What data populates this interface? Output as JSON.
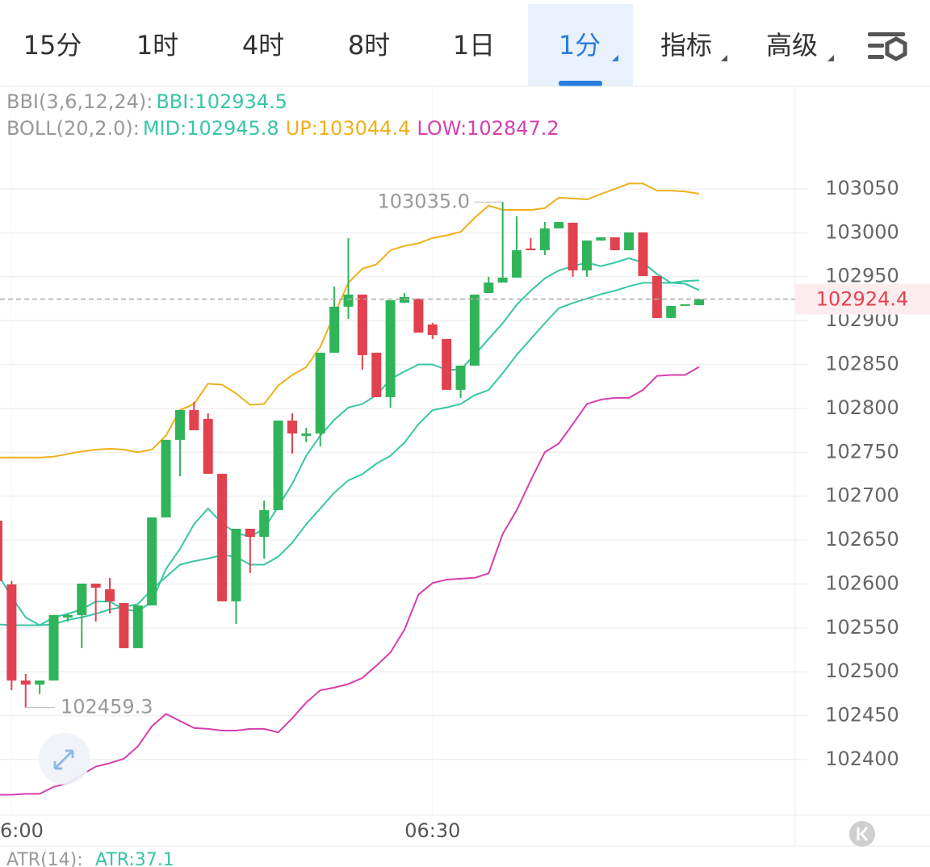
{
  "tabs": [
    "15分",
    "1时",
    "4时",
    "8时",
    "1日",
    "1分",
    "指标",
    "高级"
  ],
  "indicators": {
    "bbi_label": "BBI(3,6,12,24):",
    "boll_label": "BOLL(20,2.0):",
    "atr_label": "ATR(14):",
    "atr_value": "ATR:37.1"
  },
  "chart_data": {
    "type": "candlestick",
    "categories": [
      null,
      "6:00",
      null,
      null,
      null,
      null,
      null,
      null,
      null,
      null,
      null,
      null,
      null,
      null,
      null,
      null,
      null,
      null,
      null,
      null,
      null,
      null,
      null,
      null,
      null,
      null,
      null,
      null,
      null,
      null,
      null,
      "06:30",
      null,
      null,
      null,
      null,
      null,
      null,
      null,
      null,
      null,
      null,
      null,
      null,
      null,
      null,
      null,
      null,
      null,
      null,
      null
    ],
    "open": [
      102672.1,
      102599.5,
      102490.1,
      102485.5,
      102490.1,
      102561.8,
      102564.6,
      102600.4,
      102594.0,
      102578.3,
      102526.9,
      102575.6,
      102675.8,
      102764.1,
      102798.1,
      102788.0,
      102725.5,
      102580.2,
      102662.9,
      102653.7,
      102684.1,
      102786.1,
      102768.7,
      102771.4,
      102863.4,
      102915.8,
      102929.6,
      102863.4,
      102812.8,
      102920.4,
      102925.0,
      102895.5,
      102879.0,
      102821.1,
      102848.7,
      102931.4,
      102943.3,
      102948.9,
      102982.0,
      102980.1,
      103005.0,
      103011.4,
      102957.1,
      102991.2,
      102994.8,
      102980.1,
      103000.4,
      102950.7,
      102902.9,
      102917.6,
      102917.6
    ],
    "high": [
      102672.1,
      102603.2,
      102497.5,
      102490.1,
      102564.6,
      102566.4,
      102600.4,
      102600.4,
      102606.9,
      102578.3,
      102575.6,
      102675.8,
      102764.1,
      102798.1,
      102807.3,
      102794.4,
      102725.5,
      102662.9,
      102662.9,
      102695.1,
      102786.1,
      102794.4,
      102777.9,
      102863.4,
      102938.8,
      102993.9,
      102929.6,
      102863.4,
      102923.1,
      102931.4,
      102925.0,
      102897.4,
      102879.0,
      102848.7,
      102929.6,
      102949.8,
      103035.0,
      103018.7,
      102993.9,
      103012.3,
      103012.3,
      103011.4,
      102991.2,
      102994.8,
      102994.8,
      103000.4,
      103000.4,
      102950.7,
      102916.7,
      102918.5,
      102925.0
    ],
    "low": [
      102603.2,
      102479.1,
      102459.3,
      102474.5,
      102490.1,
      102557.2,
      102526.9,
      102557.2,
      102566.4,
      102526.9,
      102526.9,
      102575.6,
      102675.8,
      102722.7,
      102775.1,
      102725.5,
      102580.2,
      102554.4,
      102612.4,
      102628.9,
      102684.1,
      102748.4,
      102761.3,
      102756.7,
      102863.4,
      102902.0,
      102844.1,
      102812.8,
      102800.8,
      102920.4,
      102886.3,
      102879.0,
      102821.1,
      102811.9,
      102848.7,
      102931.4,
      102943.3,
      102948.9,
      102980.1,
      102974.6,
      103005.0,
      102949.8,
      102949.8,
      102991.2,
      102980.1,
      102980.1,
      102950.7,
      102902.9,
      102902.9,
      102917.6,
      102917.6
    ],
    "close": [
      102603.2,
      102490.1,
      102485.5,
      102490.1,
      102564.6,
      102564.6,
      102600.4,
      102595.8,
      102580.2,
      102526.9,
      102575.6,
      102675.8,
      102764.1,
      102798.1,
      102775.1,
      102725.5,
      102580.2,
      102662.9,
      102653.7,
      102684.1,
      102786.1,
      102771.4,
      102771.4,
      102863.4,
      102915.8,
      102929.6,
      102860.6,
      102812.8,
      102923.1,
      102926.8,
      102886.3,
      102883.6,
      102821.1,
      102848.7,
      102929.6,
      102943.3,
      102948.9,
      102980.1,
      102980.1,
      103005.0,
      103012.3,
      102957.1,
      102991.2,
      102994.8,
      102980.1,
      103000.4,
      102950.7,
      102902.9,
      102916.7,
      102918.5,
      102924.4
    ],
    "up_color": "#2fb45a",
    "down_color": "#e2414f",
    "series": [
      {
        "name": "BBI:102934.5",
        "color": "#37c6a6",
        "values": [
          102612,
          102585,
          102562,
          102553,
          102562,
          102566,
          102571,
          102580,
          102580,
          102571,
          102569,
          102580,
          102617,
          102640,
          102668,
          102686,
          102669,
          102658,
          102654,
          102663,
          102688,
          102714,
          102746,
          102769,
          102787,
          102801,
          102805,
          102815,
          102833,
          102842,
          102850,
          102850,
          102844,
          102844,
          102861,
          102879,
          102897,
          102918,
          102934,
          102948,
          102957,
          102962,
          102966,
          102962,
          102966,
          102971,
          102966,
          102953,
          102943,
          102942,
          102934.5
        ]
      },
      {
        "name": "MID:102945.8",
        "color": "#37c6a6",
        "values": [
          102554,
          102553,
          102553,
          102553,
          102554,
          102559,
          102562,
          102566,
          102571,
          102574,
          102577,
          102594,
          102608,
          102622,
          102626,
          102629,
          102633,
          102631,
          102622,
          102622,
          102631,
          102647,
          102668,
          102686,
          102704,
          102718,
          102725,
          102737,
          102746,
          102761,
          102782,
          102798,
          102801,
          102805,
          102815,
          102821,
          102840,
          102861,
          102879,
          102897,
          102914,
          102920,
          102925,
          102930,
          102934,
          102939,
          102943,
          102943,
          102943,
          102945,
          102945.8
        ]
      },
      {
        "name": "UP:103044.4",
        "color": "#eeb01c",
        "values": [
          102744,
          102744,
          102744,
          102744,
          102745,
          102748,
          102751,
          102753,
          102754,
          102753,
          102750,
          102753,
          102769,
          102798,
          102805,
          102828,
          102827,
          102817,
          102804,
          102805,
          102826,
          102838,
          102847,
          102870,
          102907,
          102943,
          102959,
          102964,
          102980,
          102985,
          102988,
          102994,
          102997,
          103001,
          103017,
          103031,
          103026,
          103026,
          103026,
          103028,
          103040,
          103039,
          103038,
          103044,
          103050,
          103056,
          103056,
          103048,
          103048,
          103047,
          103044.4
        ]
      },
      {
        "name": "LOW:102847.2",
        "color": "#d63fae",
        "values": [
          102360,
          102360,
          102361,
          102361,
          102369,
          102373,
          102383,
          102392,
          102396,
          102401,
          102415,
          102438,
          102452,
          102444,
          102436,
          102435,
          102433,
          102433,
          102435,
          102435,
          102431,
          102447,
          102465,
          102479,
          102482,
          102486,
          102493,
          102507,
          102522,
          102548,
          102588,
          102601,
          102605,
          102606,
          102607,
          102612,
          102657,
          102684,
          102718,
          102750,
          102760,
          102782,
          102805,
          102810,
          102812,
          102812,
          102821,
          102837,
          102838,
          102838,
          102847.2
        ]
      }
    ],
    "ylim": [
      102336.5,
      103165.8
    ],
    "yticks": [
      102400,
      102450,
      102500,
      102550,
      102600,
      102650,
      102700,
      102750,
      102800,
      102850,
      102900,
      102950,
      103000,
      103050
    ],
    "grid": true,
    "last_price": 102924.4,
    "high_label": {
      "value": 103035.0,
      "label": "103035.0"
    },
    "low_label": 102459.3
  }
}
